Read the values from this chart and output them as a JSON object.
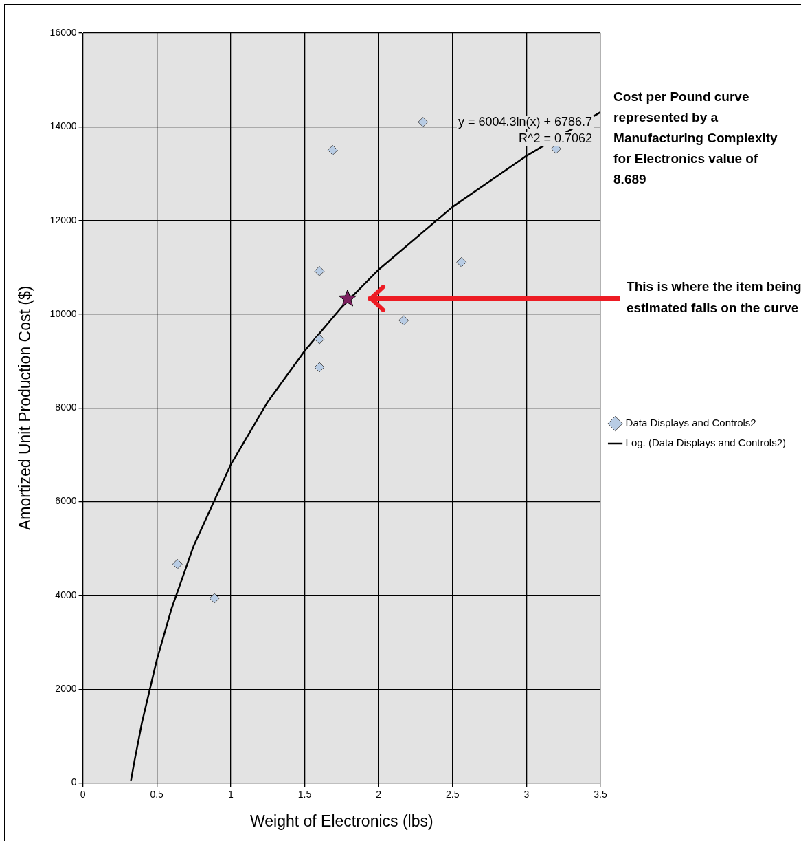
{
  "chart_data": {
    "type": "scatter",
    "xlabel": "Weight of Electronics (lbs)",
    "ylabel": "Amortized Unit Production Cost ($)",
    "xlim": [
      0,
      3.5
    ],
    "xticks": [
      0,
      0.5,
      1,
      1.5,
      2,
      2.5,
      3,
      3.5
    ],
    "ylim": [
      0,
      16000
    ],
    "yticks": [
      0,
      2000,
      4000,
      6000,
      8000,
      10000,
      12000,
      14000,
      16000
    ],
    "grid": true,
    "legend": "right",
    "series": [
      {
        "name": "Data Displays and Controls2",
        "type": "scatter",
        "marker": "diamond",
        "color": "#b8cce4",
        "x": [
          0.64,
          0.89,
          1.69,
          1.6,
          1.6,
          1.6,
          2.17,
          2.3,
          2.56,
          3.2
        ],
        "values": [
          4670,
          3940,
          13500,
          10920,
          9470,
          8870,
          9870,
          14100,
          11110,
          13530
        ]
      },
      {
        "name": "Log. (Data Displays and Controls2)",
        "type": "line",
        "marker": "none",
        "line_style": "solid",
        "color": "#000000",
        "x": [
          0.325,
          0.35,
          0.4,
          0.5,
          0.6,
          0.75,
          1,
          1.25,
          1.5,
          1.75,
          2,
          2.5,
          3,
          3.5
        ],
        "values": [
          40,
          480,
          1290,
          2620,
          3720,
          5060,
          6790,
          8130,
          9220,
          10150,
          10950,
          12290,
          13380,
          14310
        ]
      },
      {
        "type": "scatter",
        "marker": "star",
        "color": "#7b1f5e",
        "x": [
          1.79
        ],
        "values": [
          10330
        ]
      }
    ],
    "annotations": [
      "y = 6004.3ln(x) + 6786.7",
      "R^2 = 0.7062",
      "Cost per Pound curve represented by a Manufacturing Complexity for Electronics value of 8.689",
      "This is where the item being estimated falls on the curve"
    ]
  }
}
